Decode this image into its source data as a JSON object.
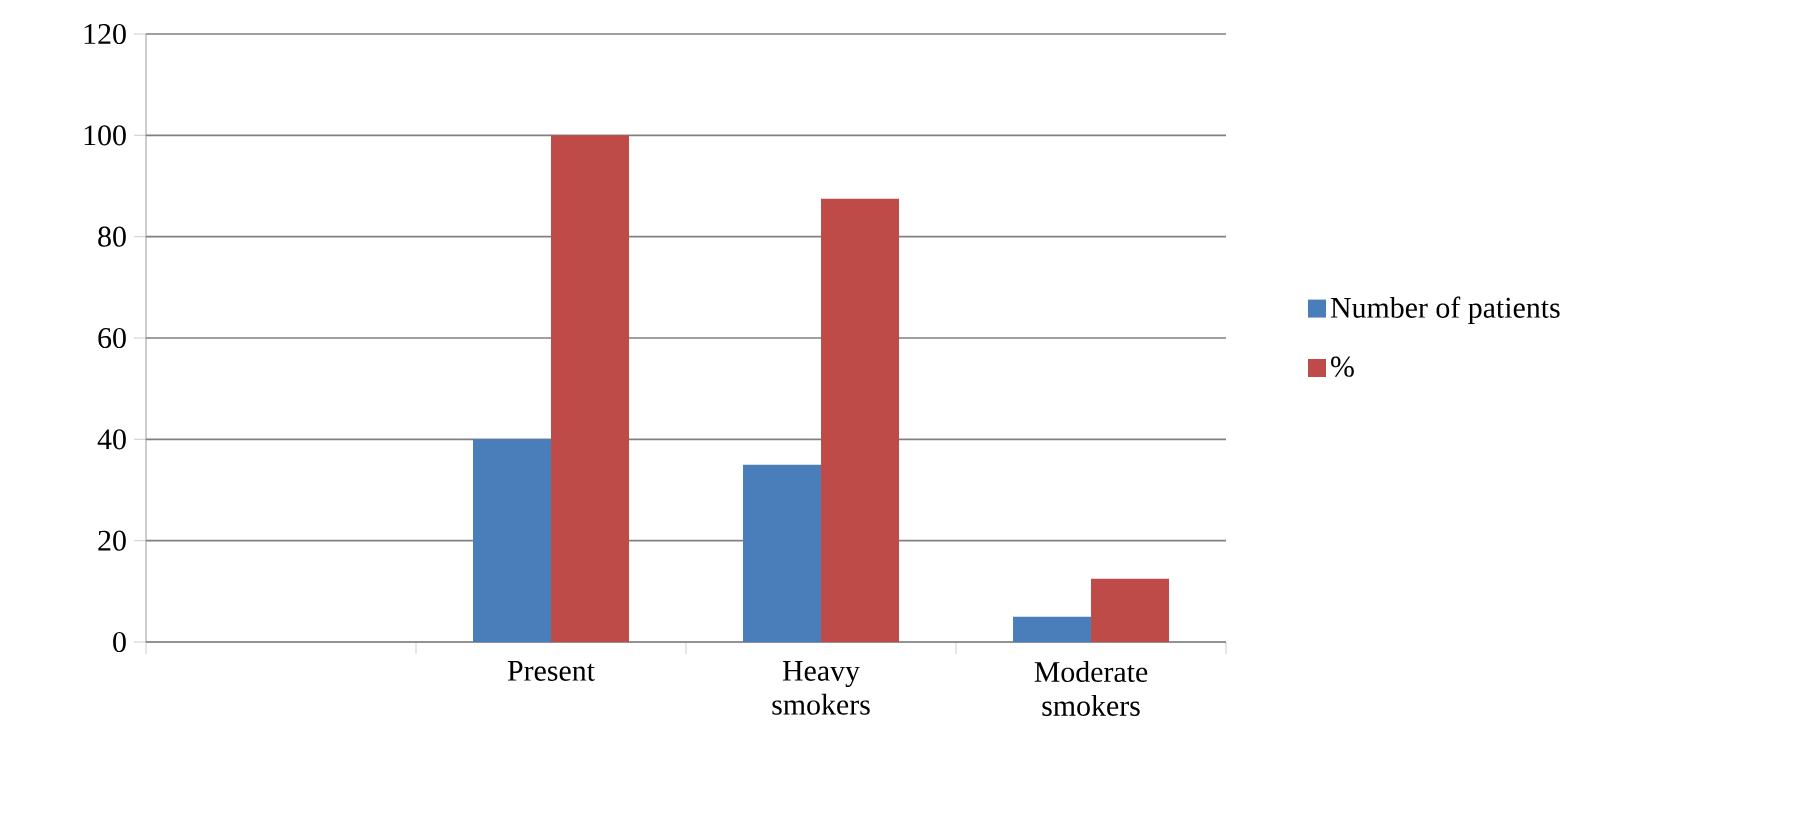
{
  "chart_data": {
    "type": "bar",
    "categories": [
      null,
      "Present",
      "Heavy smokers",
      "Moderate smokers"
    ],
    "series": [
      {
        "name": "Number of patients",
        "color": "#4a7ebb",
        "values": [
          null,
          40,
          35,
          5
        ]
      },
      {
        "name": "%",
        "color": "#be4b48",
        "values": [
          null,
          100,
          87.5,
          12.5
        ]
      }
    ],
    "ylim": [
      0,
      120
    ],
    "yticks": [
      0,
      20,
      40,
      60,
      80,
      100,
      120
    ],
    "grid": "y",
    "legend": "right"
  }
}
